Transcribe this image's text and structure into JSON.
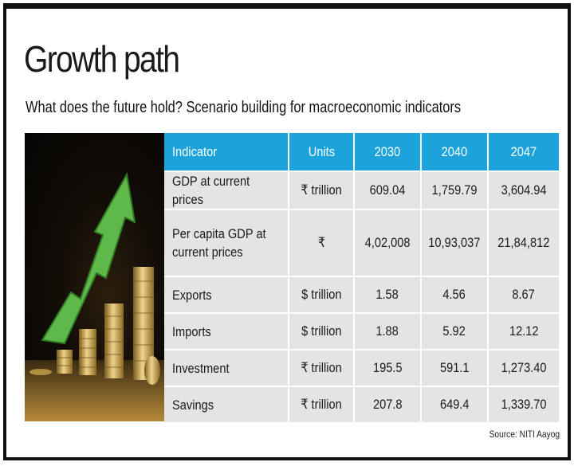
{
  "title": "Growth path",
  "subtitle": "What does the future hold? Scenario building for macroeconomic indicators",
  "table": {
    "headers": [
      "Indicator",
      "Units",
      "2030",
      "2040",
      "2047"
    ],
    "rows": [
      {
        "indicator": "GDP at current prices",
        "units": "₹ trillion",
        "y2030": "609.04",
        "y2040": "1,759.79",
        "y2047": "3,604.94"
      },
      {
        "indicator": "Per capita GDP at current prices",
        "units": "₹",
        "y2030": "4,02,008",
        "y2040": "10,93,037",
        "y2047": "21,84,812"
      },
      {
        "indicator": "Exports",
        "units": "$ trillion",
        "y2030": "1.58",
        "y2040": "4.56",
        "y2047": "8.67"
      },
      {
        "indicator": "Imports",
        "units": "$ trillion",
        "y2030": "1.88",
        "y2040": "5.92",
        "y2047": "12.12"
      },
      {
        "indicator": "Investment",
        "units": "₹ trillion",
        "y2030": "195.5",
        "y2040": "591.1",
        "y2047": "1,273.40"
      },
      {
        "indicator": "Savings",
        "units": "₹ trillion",
        "y2030": "207.8",
        "y2040": "649.4",
        "y2047": "1,339.70"
      }
    ]
  },
  "source": "Source: NITI Aayog",
  "colors": {
    "header_bg": "#1ca3dc",
    "cell_bg": "#e4e4e4",
    "arrow": "#5fb84a",
    "coin": "#c9a24a"
  },
  "image": {
    "icon": "growth-arrow-coins-icon"
  }
}
